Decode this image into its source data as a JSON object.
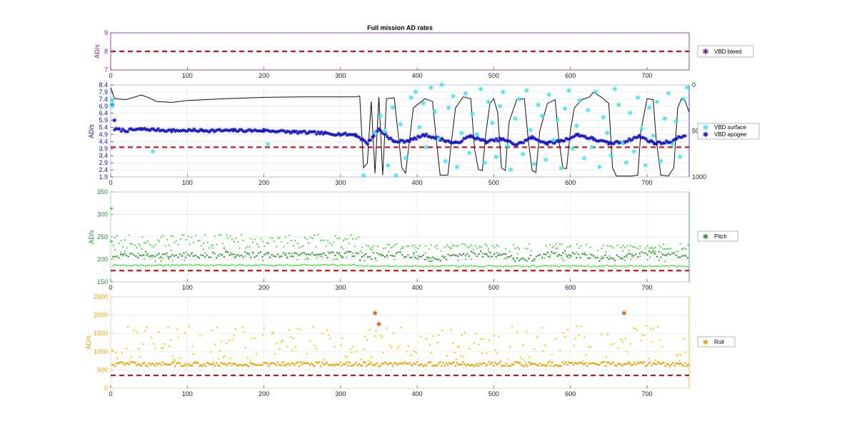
{
  "colors": {
    "vbd_bleed": "#7b1fa2",
    "vbd_surface": "#3ee8f0",
    "vbd_apogee": "#1212c8",
    "pitch_dark": "#2e8b3a",
    "pitch_light": "#3fdc3f",
    "roll_dark": "#f5a000",
    "roll_light": "#f0d000",
    "threshold": "#cc1111",
    "depth": "#111111"
  },
  "chart_data": [
    {
      "type": "scatter",
      "title": "Full mission AD rates",
      "ylabel": "AD/s",
      "xlim": [
        0,
        755
      ],
      "ylim": [
        7,
        9
      ],
      "xticks": [
        0,
        100,
        200,
        300,
        400,
        500,
        600,
        700
      ],
      "yticks": [
        7,
        8,
        9
      ],
      "threshold": 8,
      "grid": false,
      "legend_position": "right",
      "series": [
        {
          "name": "VBD bleed",
          "values": []
        }
      ]
    },
    {
      "type": "scatter",
      "ylabel": "AD/s",
      "xlim": [
        0,
        755
      ],
      "ylim": [
        1.9,
        8.4
      ],
      "xticks": [
        0,
        100,
        200,
        300,
        400,
        500,
        600,
        700
      ],
      "yticks": [
        1.9,
        2.4,
        2.9,
        3.4,
        3.9,
        4.4,
        4.9,
        5.4,
        5.9,
        6.4,
        6.9,
        7.4,
        7.9,
        8.4
      ],
      "y2ticks": [
        0,
        500,
        1000
      ],
      "y2lim": [
        0,
        1000
      ],
      "threshold": 4,
      "grid": true,
      "legend_position": "right",
      "series": [
        {
          "name": "VBD surface",
          "points": [
            [
              2,
              7.3
            ],
            [
              2,
              6.9
            ],
            [
              55,
              3.7
            ],
            [
              205,
              4.2
            ],
            [
              330,
              2.0
            ],
            [
              345,
              5.0
            ],
            [
              352,
              6.2
            ],
            [
              358,
              5.1
            ],
            [
              362,
              2.7
            ],
            [
              368,
              6.8
            ],
            [
              372,
              2.0
            ],
            [
              378,
              5.6
            ],
            [
              385,
              3.2
            ],
            [
              392,
              7.5
            ],
            [
              398,
              7.9
            ],
            [
              403,
              5.4
            ],
            [
              408,
              7.1
            ],
            [
              412,
              4.0
            ],
            [
              418,
              8.2
            ],
            [
              423,
              6.5
            ],
            [
              428,
              4.6
            ],
            [
              432,
              8.4
            ],
            [
              437,
              3.0
            ],
            [
              441,
              6.8
            ],
            [
              447,
              7.6
            ],
            [
              452,
              2.6
            ],
            [
              458,
              5.0
            ],
            [
              463,
              7.8
            ],
            [
              468,
              3.6
            ],
            [
              472,
              6.3
            ],
            [
              478,
              4.9
            ],
            [
              483,
              8.1
            ],
            [
              488,
              2.9
            ],
            [
              493,
              7.2
            ],
            [
              498,
              5.7
            ],
            [
              503,
              3.3
            ],
            [
              508,
              6.9
            ],
            [
              512,
              7.9
            ],
            [
              518,
              4.1
            ],
            [
              522,
              2.4
            ],
            [
              528,
              6.0
            ],
            [
              533,
              7.4
            ],
            [
              538,
              3.5
            ],
            [
              543,
              8.0
            ],
            [
              548,
              5.2
            ],
            [
              553,
              2.8
            ],
            [
              558,
              7.0
            ],
            [
              563,
              6.2
            ],
            [
              568,
              3.1
            ],
            [
              572,
              7.7
            ],
            [
              578,
              4.5
            ],
            [
              583,
              5.9
            ],
            [
              588,
              2.5
            ],
            [
              593,
              6.7
            ],
            [
              598,
              8.0
            ],
            [
              603,
              3.9
            ],
            [
              608,
              5.5
            ],
            [
              612,
              7.3
            ],
            [
              618,
              3.2
            ],
            [
              623,
              6.6
            ],
            [
              628,
              4.0
            ],
            [
              633,
              7.9
            ],
            [
              638,
              2.6
            ],
            [
              643,
              6.1
            ],
            [
              648,
              5.0
            ],
            [
              653,
              3.4
            ],
            [
              658,
              8.1
            ],
            [
              663,
              7.0
            ],
            [
              668,
              4.3
            ],
            [
              673,
              2.9
            ],
            [
              678,
              6.4
            ],
            [
              683,
              3.7
            ],
            [
              688,
              7.5
            ],
            [
              693,
              5.3
            ],
            [
              698,
              2.7
            ],
            [
              703,
              6.8
            ],
            [
              708,
              4.8
            ],
            [
              713,
              7.2
            ],
            [
              718,
              3.0
            ],
            [
              723,
              6.0
            ],
            [
              728,
              7.8
            ],
            [
              733,
              4.2
            ],
            [
              738,
              5.8
            ],
            [
              743,
              3.3
            ],
            [
              748,
              7.4
            ],
            [
              752,
              8.2
            ]
          ]
        },
        {
          "name": "VBD apogee",
          "level_points": [
            [
              2,
              7.0
            ],
            [
              5,
              5.9
            ],
            [
              5,
              5.3
            ],
            [
              20,
              5.2
            ],
            [
              40,
              5.3
            ],
            [
              80,
              5.2
            ],
            [
              120,
              5.2
            ],
            [
              160,
              5.2
            ],
            [
              200,
              5.2
            ],
            [
              240,
              5.1
            ],
            [
              280,
              5.0
            ],
            [
              320,
              4.9
            ],
            [
              335,
              4.3
            ],
            [
              350,
              5.3
            ],
            [
              370,
              4.4
            ],
            [
              390,
              4.5
            ],
            [
              410,
              4.9
            ],
            [
              430,
              4.6
            ],
            [
              450,
              4.3
            ],
            [
              470,
              4.8
            ],
            [
              490,
              4.4
            ],
            [
              510,
              4.6
            ],
            [
              530,
              4.2
            ],
            [
              550,
              4.7
            ],
            [
              570,
              4.3
            ],
            [
              590,
              4.5
            ],
            [
              610,
              4.9
            ],
            [
              630,
              4.6
            ],
            [
              650,
              4.3
            ],
            [
              670,
              4.4
            ],
            [
              690,
              4.8
            ],
            [
              710,
              4.3
            ],
            [
              730,
              4.4
            ],
            [
              750,
              4.9
            ]
          ]
        }
      ],
      "depth_profile": [
        [
          0,
          30
        ],
        [
          5,
          150
        ],
        [
          20,
          160
        ],
        [
          40,
          110
        ],
        [
          50,
          140
        ],
        [
          60,
          180
        ],
        [
          80,
          190
        ],
        [
          100,
          170
        ],
        [
          150,
          150
        ],
        [
          200,
          135
        ],
        [
          250,
          130
        ],
        [
          300,
          130
        ],
        [
          320,
          130
        ],
        [
          325,
          120
        ],
        [
          330,
          900
        ],
        [
          335,
          850
        ],
        [
          340,
          180
        ],
        [
          345,
          960
        ],
        [
          350,
          130
        ],
        [
          355,
          980
        ],
        [
          360,
          150
        ],
        [
          370,
          140
        ],
        [
          380,
          900
        ],
        [
          385,
          960
        ],
        [
          390,
          600
        ],
        [
          395,
          250
        ],
        [
          410,
          150
        ],
        [
          420,
          180
        ],
        [
          425,
          600
        ],
        [
          430,
          980
        ],
        [
          440,
          980
        ],
        [
          445,
          600
        ],
        [
          450,
          250
        ],
        [
          460,
          130
        ],
        [
          470,
          150
        ],
        [
          475,
          700
        ],
        [
          480,
          920
        ],
        [
          485,
          930
        ],
        [
          490,
          500
        ],
        [
          495,
          200
        ],
        [
          500,
          150
        ],
        [
          505,
          300
        ],
        [
          510,
          900
        ],
        [
          515,
          930
        ],
        [
          520,
          400
        ],
        [
          530,
          160
        ],
        [
          540,
          150
        ],
        [
          545,
          600
        ],
        [
          550,
          930
        ],
        [
          555,
          950
        ],
        [
          560,
          500
        ],
        [
          570,
          200
        ],
        [
          580,
          160
        ],
        [
          585,
          600
        ],
        [
          590,
          900
        ],
        [
          595,
          910
        ],
        [
          600,
          500
        ],
        [
          605,
          250
        ],
        [
          615,
          160
        ],
        [
          625,
          130
        ],
        [
          630,
          80
        ],
        [
          640,
          130
        ],
        [
          650,
          200
        ],
        [
          655,
          900
        ],
        [
          660,
          990
        ],
        [
          670,
          990
        ],
        [
          680,
          990
        ],
        [
          688,
          980
        ],
        [
          692,
          500
        ],
        [
          700,
          150
        ],
        [
          708,
          160
        ],
        [
          712,
          600
        ],
        [
          718,
          980
        ],
        [
          728,
          990
        ],
        [
          735,
          900
        ],
        [
          740,
          250
        ],
        [
          745,
          150
        ],
        [
          750,
          180
        ],
        [
          755,
          300
        ]
      ]
    },
    {
      "type": "scatter",
      "ylabel": "AD/s",
      "xlim": [
        0,
        755
      ],
      "ylim": [
        150,
        350
      ],
      "xticks": [
        0,
        100,
        200,
        300,
        400,
        500,
        600,
        700
      ],
      "yticks": [
        150,
        200,
        250,
        300,
        350
      ],
      "threshold": 175,
      "grid": true,
      "legend_position": "right",
      "series": [
        {
          "name": "Pitch",
          "band": [
            195,
            225
          ],
          "outliers": [
            [
              1,
              313
            ],
            [
              1,
              240
            ]
          ]
        }
      ]
    },
    {
      "type": "scatter",
      "ylabel": "AD/s",
      "xlim": [
        0,
        755
      ],
      "ylim": [
        0,
        2500
      ],
      "xticks": [
        0,
        100,
        200,
        300,
        400,
        500,
        600,
        700
      ],
      "yticks": [
        0,
        500,
        1000,
        1500,
        2000,
        2500
      ],
      "threshold": 350,
      "grid": true,
      "legend_position": "right",
      "series": [
        {
          "name": "Roll",
          "band": [
            600,
            720
          ],
          "spread": [
            700,
            1700
          ],
          "outliers": [
            [
              350,
              1750
            ],
            [
              345,
              2050
            ],
            [
              670,
              2050
            ]
          ]
        }
      ]
    }
  ]
}
